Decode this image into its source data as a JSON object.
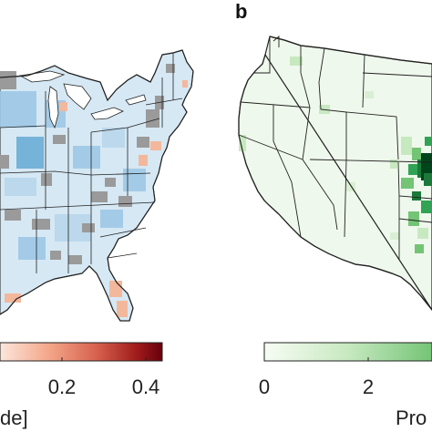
{
  "panel_a": {
    "colorbar": {
      "ticks": [
        "0.2",
        "0.4"
      ],
      "label_fragment": "de]",
      "colors": [
        "#fbe6dc",
        "#f4a78a",
        "#d6604d",
        "#9e1a1a",
        "#67000d"
      ]
    },
    "colors": {
      "water": "#ffffff",
      "border": "#222222",
      "blue_light": "#d6e8f4",
      "blue": "#9ec8e6",
      "blue_dark": "#6baed6",
      "gray": "#9a9a9a",
      "salmon": "#f3b89c"
    }
  },
  "panel_b": {
    "label": "b",
    "colorbar": {
      "ticks": [
        "0",
        "2"
      ],
      "label_fragment": "Pro",
      "colors": [
        "#f7fcf5",
        "#c7e9c0",
        "#74c476",
        "#31a354"
      ]
    },
    "colors": {
      "land": "#eff8ec",
      "border": "#222222",
      "green_light": "#c7e9c0",
      "green": "#74c476",
      "green_dark": "#1b7a3a",
      "green_darkest": "#00441b"
    }
  }
}
